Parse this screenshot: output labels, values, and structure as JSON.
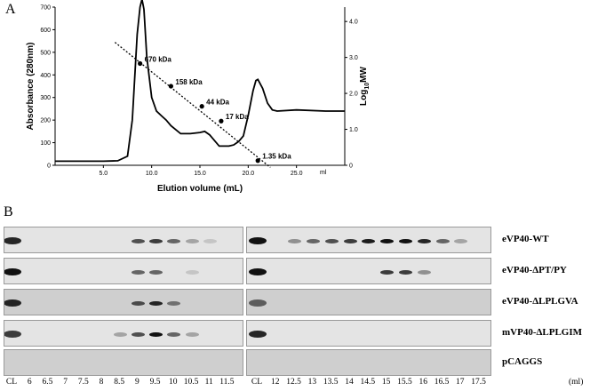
{
  "panel_a_label": "A",
  "panel_b_label": "B",
  "chart_data": {
    "type": "line",
    "xlabel": "Elution volume (mL)",
    "ylabel": "Absorbance (280nm)",
    "y2label": "Log10MW",
    "xlim": [
      0,
      30
    ],
    "ylim": [
      0,
      700
    ],
    "y2lim": [
      0,
      4.4
    ],
    "x_ticks": [
      "5.0",
      "10.0",
      "15.0",
      "20.0",
      "25.0"
    ],
    "x_unit_label": "ml",
    "y_ticks": [
      "0",
      "100",
      "200",
      "300",
      "400",
      "500",
      "600",
      "700"
    ],
    "y2_ticks": [
      "0",
      "1.0",
      "2.0",
      "3.0",
      "4.0"
    ],
    "series": [
      {
        "x": [
          0,
          5,
          6.5,
          7.5,
          8.0,
          8.5,
          8.8,
          9.0,
          9.2,
          9.5,
          10.0,
          10.5,
          11.0,
          11.5,
          12.0,
          13.0,
          14.0,
          15.0,
          15.5,
          16.0,
          17.0,
          18.0,
          18.5,
          19.0,
          19.5,
          20.0,
          20.5,
          20.8,
          21.0,
          21.5,
          22.0,
          22.5,
          23.0,
          25.0,
          28.0,
          30.0
        ],
        "values": [
          18,
          18,
          20,
          40,
          200,
          580,
          700,
          740,
          690,
          480,
          300,
          240,
          220,
          200,
          175,
          140,
          140,
          145,
          150,
          135,
          85,
          85,
          90,
          105,
          130,
          220,
          330,
          375,
          380,
          340,
          275,
          245,
          240,
          245,
          240,
          240
        ]
      }
    ],
    "standards": [
      {
        "label": "670 kDa",
        "x": 8.8,
        "log10mw": 2.83
      },
      {
        "label": "158 kDa",
        "x": 12.0,
        "log10mw": 2.2
      },
      {
        "label": "44 kDa",
        "x": 15.2,
        "log10mw": 1.64
      },
      {
        "label": "17 kDa",
        "x": 17.2,
        "log10mw": 1.23
      },
      {
        "label": "1.35 kDa",
        "x": 21.0,
        "log10mw": 0.13
      }
    ],
    "calibration_line": {
      "x": [
        6.2,
        22.3
      ],
      "log10mw": [
        3.42,
        -0.06
      ]
    }
  },
  "blot": {
    "rows": [
      {
        "label": "eVP40-WT",
        "bands_left": {
          "CL": 0.9,
          "9": 0.7,
          "9.5": 0.8,
          "10": 0.6,
          "10.5": 0.3,
          "11": 0.15
        },
        "bands_right": {
          "CL": 1.0,
          "12.5": 0.4,
          "13": 0.6,
          "13.5": 0.7,
          "14": 0.8,
          "14.5": 0.95,
          "15": 1.0,
          "15.5": 1.0,
          "16": 0.9,
          "16.5": 0.6,
          "17": 0.3
        }
      },
      {
        "label": "eVP40-ΔPT/PY",
        "bands_left": {
          "CL": 1.0,
          "9": 0.6,
          "9.5": 0.6,
          "10.5": 0.15
        },
        "bands_right": {
          "CL": 1.0,
          "15": 0.8,
          "15.5": 0.8,
          "16": 0.4
        }
      },
      {
        "label": "eVP40-ΔLPLGVA",
        "bands_left": {
          "CL": 0.9,
          "9": 0.7,
          "9.5": 0.9,
          "10": 0.5
        },
        "bands_right": {
          "CL": 0.6
        }
      },
      {
        "label": "mVP40-ΔLPLGIM",
        "bands_left": {
          "CL": 0.8,
          "8.5": 0.3,
          "9": 0.7,
          "9.5": 1.0,
          "10": 0.6,
          "10.5": 0.3
        },
        "bands_right": {
          "CL": 0.9
        }
      },
      {
        "label": "pCAGGS",
        "bands_left": {},
        "bands_right": {}
      }
    ],
    "lanes_left": [
      "CL",
      "6",
      "6.5",
      "7",
      "7.5",
      "8",
      "8.5",
      "9",
      "9.5",
      "10",
      "10.5",
      "11",
      "11.5"
    ],
    "lanes_right": [
      "CL",
      "12",
      "12.5",
      "13",
      "13.5",
      "14",
      "14.5",
      "15",
      "15.5",
      "16",
      "16.5",
      "17",
      "17.5"
    ],
    "unit": "(ml)"
  }
}
